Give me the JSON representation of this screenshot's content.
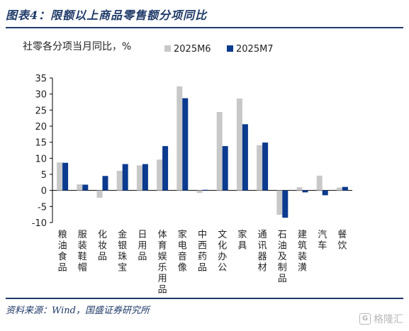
{
  "figure": {
    "title": "图表4：限额以上商品零售额分项同比",
    "source": "资料来源：Wind，国盛证券研究所",
    "watermark": "格隆汇",
    "watermark_logo": "G"
  },
  "colors": {
    "brand": "#1f3a68",
    "series_m6": "#c8c8c8",
    "series_m7": "#0b3a8e"
  },
  "chart_data": {
    "type": "bar",
    "subtitle": "社零各分项当月同比，%",
    "categories": [
      "粮油食品",
      "服装鞋帽",
      "化妆品",
      "金银珠宝",
      "日用品",
      "体育娱乐用品",
      "家电音像",
      "中西药品",
      "文化办公",
      "家具",
      "通讯器材",
      "石油及制品",
      "建筑装潢",
      "汽车",
      "餐饮"
    ],
    "series": [
      {
        "name": "2025M6",
        "color": "#c8c8c8",
        "values": [
          8.7,
          1.9,
          -2.3,
          6.1,
          7.8,
          9.6,
          32.4,
          -0.8,
          24.4,
          28.6,
          14.1,
          -7.6,
          1.0,
          4.6,
          0.9
        ]
      },
      {
        "name": "2025M7",
        "color": "#0b3a8e",
        "values": [
          8.6,
          1.8,
          4.5,
          8.2,
          8.2,
          13.8,
          28.7,
          0.2,
          13.8,
          20.6,
          14.9,
          -8.5,
          -0.6,
          -1.5,
          1.1
        ]
      }
    ],
    "ylim": [
      -10,
      35
    ],
    "yticks": [
      -10,
      -5,
      0,
      5,
      10,
      15,
      20,
      25,
      30,
      35
    ],
    "legend_position": "top",
    "grid": false
  }
}
